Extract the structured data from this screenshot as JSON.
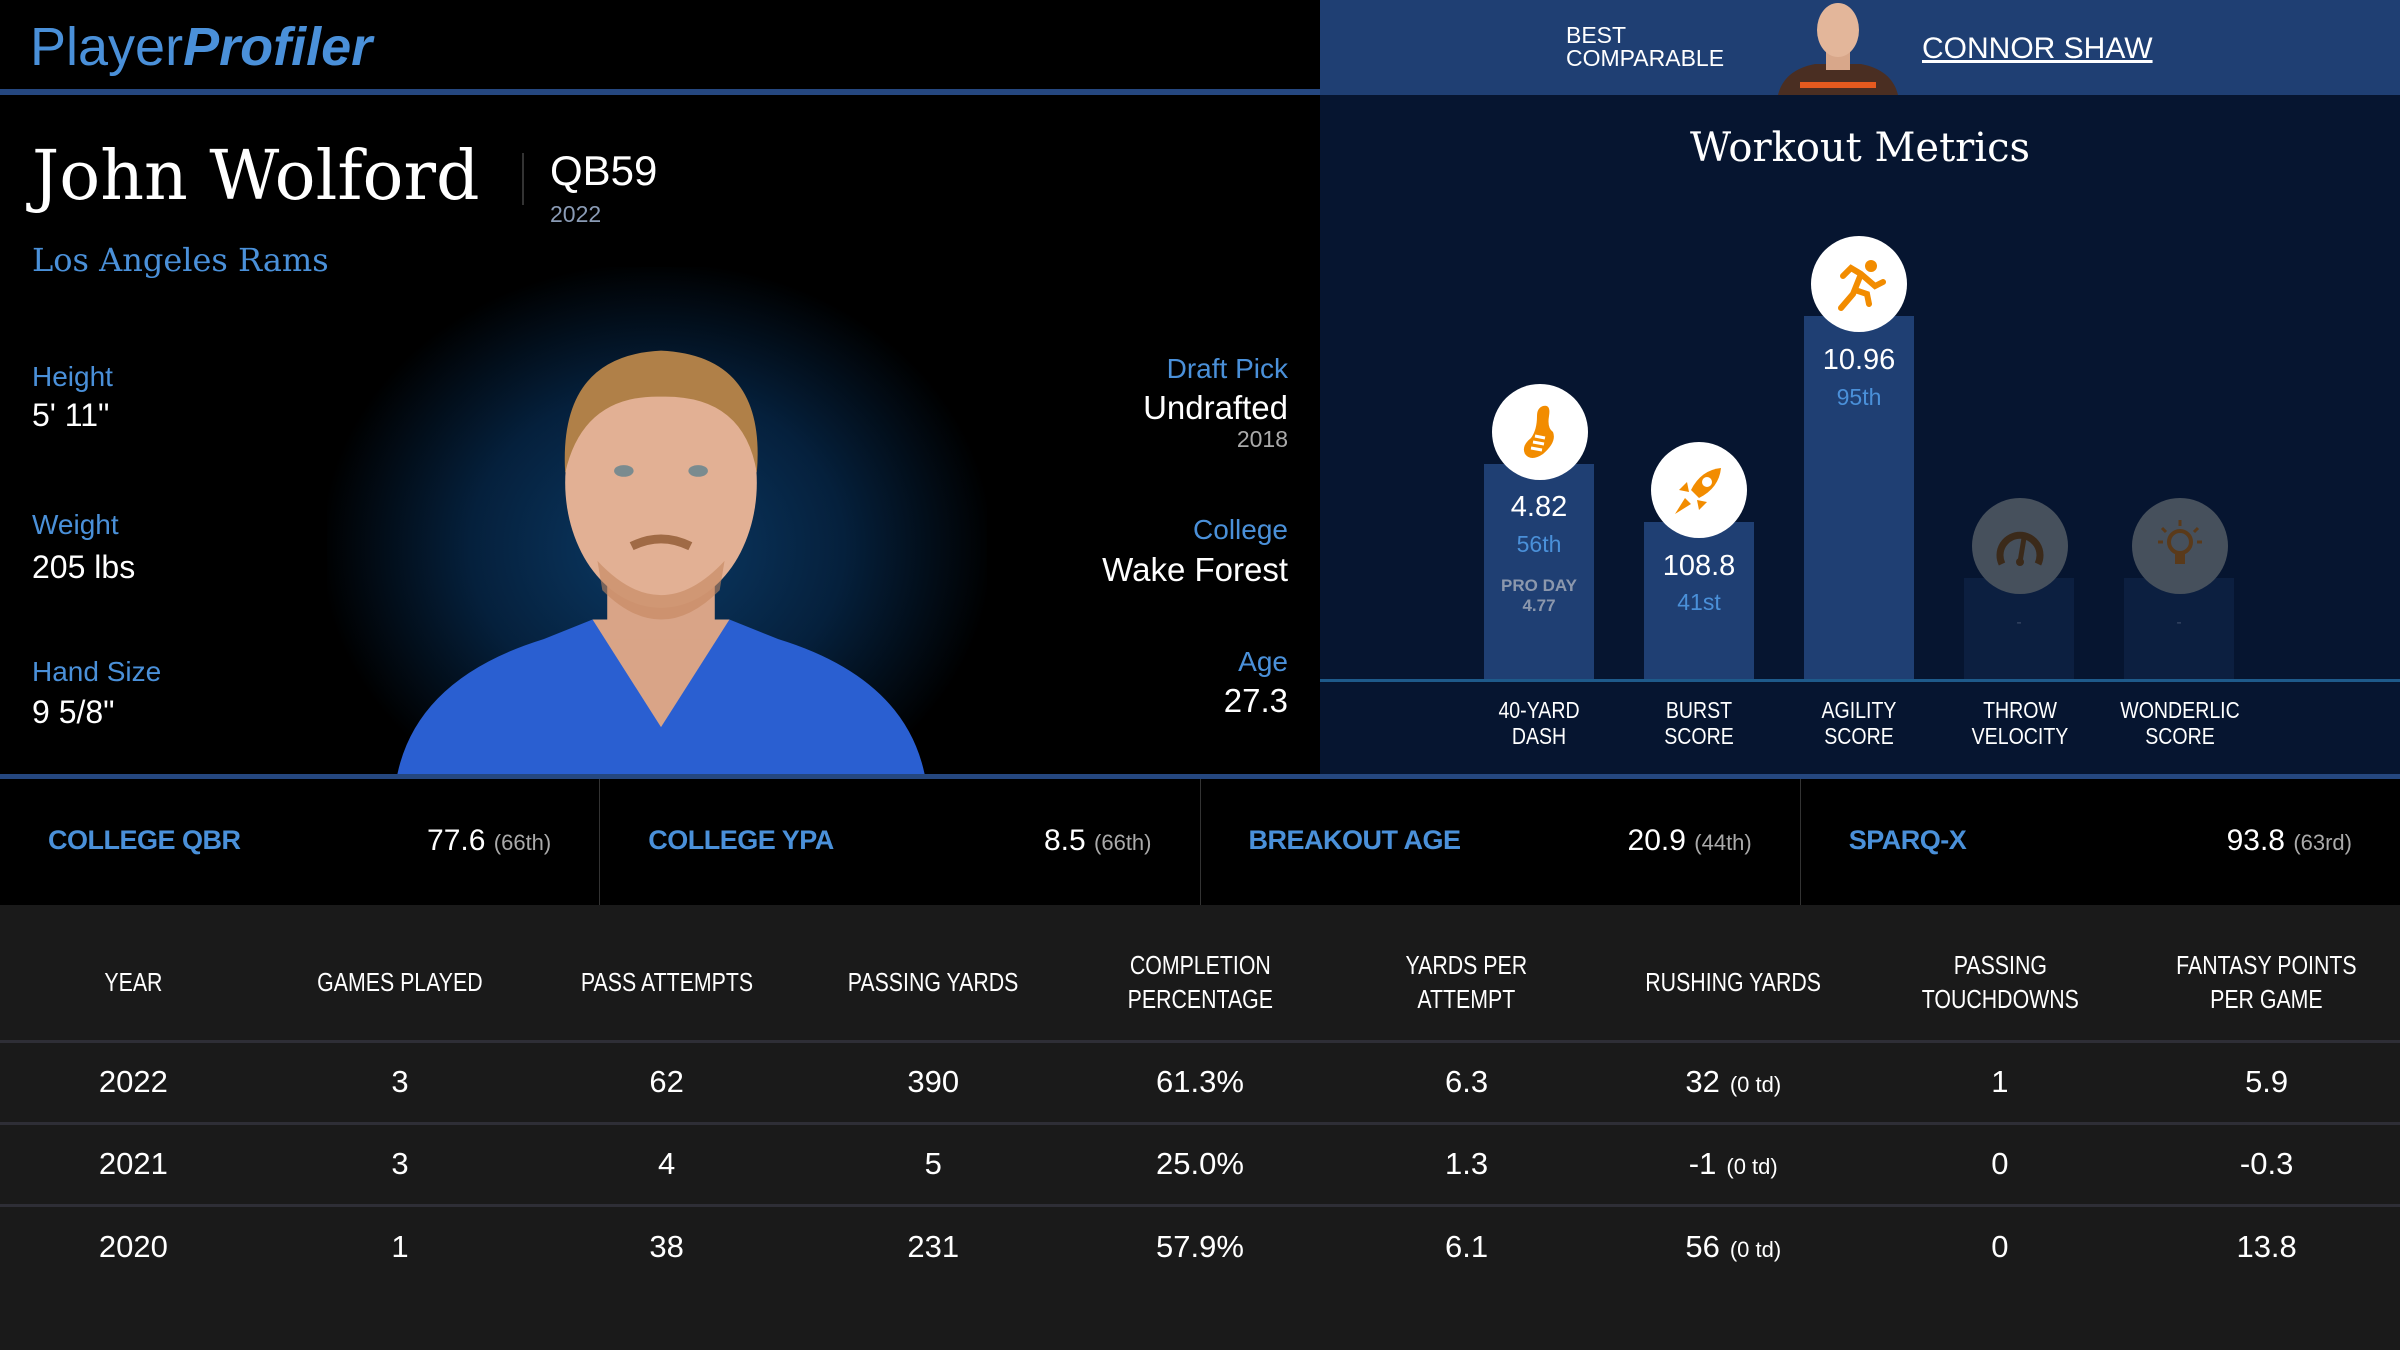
{
  "header": {
    "logo_light": "Player",
    "logo_bold": "Profiler"
  },
  "comparable": {
    "label_line1": "BEST",
    "label_line2": "COMPARABLE",
    "name": "CONNOR SHAW"
  },
  "player": {
    "name": "John Wolford",
    "position_rank": "QB59",
    "season": "2022",
    "team": "Los Angeles Rams",
    "height_label": "Height",
    "height": "5' 11\"",
    "weight_label": "Weight",
    "weight": "205 lbs",
    "hand_label": "Hand Size",
    "hand_size": "9 5/8\"",
    "draft_label": "Draft Pick",
    "draft": "Undrafted",
    "draft_year": "2018",
    "college_label": "College",
    "college": "Wake Forest",
    "age_label": "Age",
    "age": "27.3"
  },
  "workout": {
    "title": "Workout Metrics",
    "metrics": [
      {
        "label1": "40-YARD",
        "label2": "DASH",
        "value": "4.82",
        "pct": "56th",
        "extra1": "PRO DAY",
        "extra2": "4.77",
        "percentile": 56,
        "icon": "shoe-icon"
      },
      {
        "label1": "BURST",
        "label2": "SCORE",
        "value": "108.8",
        "pct": "41st",
        "percentile": 41,
        "icon": "rocket-icon"
      },
      {
        "label1": "AGILITY",
        "label2": "SCORE",
        "value": "10.96",
        "pct": "95th",
        "percentile": 95,
        "icon": "runner-icon"
      },
      {
        "label1": "THROW",
        "label2": "VELOCITY",
        "value": "-",
        "icon": "gauge-icon"
      },
      {
        "label1": "WONDERLIC",
        "label2": "SCORE",
        "value": "-",
        "icon": "lightbulb-icon"
      }
    ]
  },
  "stats": [
    {
      "label": "COLLEGE QBR",
      "value": "77.6",
      "pct": "(66th)"
    },
    {
      "label": "COLLEGE YPA",
      "value": "8.5",
      "pct": "(66th)"
    },
    {
      "label": "BREAKOUT AGE",
      "value": "20.9",
      "pct": "(44th)"
    },
    {
      "label": "SPARQ-X",
      "value": "93.8",
      "pct": "(63rd)"
    }
  ],
  "table": {
    "headers": [
      "YEAR",
      "GAMES PLAYED",
      "PASS ATTEMPTS",
      "PASSING YARDS",
      "COMPLETION PERCENTAGE",
      "YARDS PER ATTEMPT",
      "RUSHING YARDS",
      "PASSING TOUCHDOWNS",
      "FANTASY POINTS PER GAME"
    ],
    "rows": [
      [
        "2022",
        "3",
        "62",
        "390",
        "61.3%",
        "6.3",
        "32",
        "(0 td)",
        "1",
        "5.9"
      ],
      [
        "2021",
        "3",
        "4",
        "5",
        "25.0%",
        "1.3",
        "-1",
        "(0 td)",
        "0",
        "-0.3"
      ],
      [
        "2020",
        "1",
        "38",
        "231",
        "57.9%",
        "6.1",
        "56",
        "(0 td)",
        "0",
        "13.8"
      ]
    ]
  },
  "colors": {
    "accent": "#4a90d9",
    "icon": "#f28c00",
    "bar": "#1f3f73",
    "panel": "#061530"
  }
}
